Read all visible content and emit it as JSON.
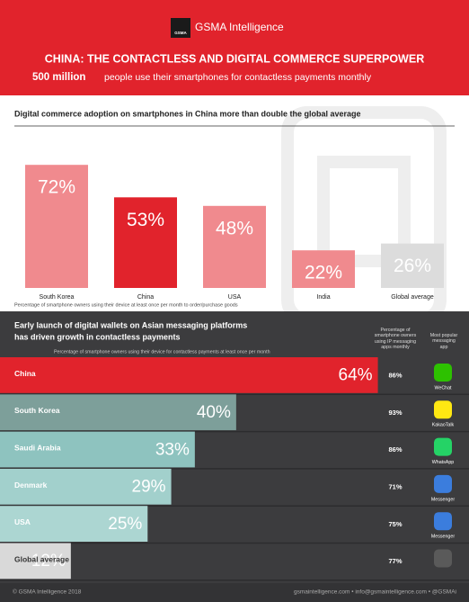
{
  "header": {
    "logo_mark": "GSMA",
    "logo": "GSMA Intelligence",
    "title": "CHINA: THE CONTACTLESS AND DIGITAL COMMERCE SUPERPOWER",
    "highlight": "500 million",
    "subtitle": "people use their smartphones for contactless payments monthly"
  },
  "chart_data": [
    {
      "type": "bar",
      "title": "Digital commerce adoption on smartphones in China more than double the global average",
      "note": "Percentage of smartphone owners using their device at least once per month  to order/purchase goods",
      "categories": [
        "South Korea",
        "China",
        "USA",
        "India",
        "Global average"
      ],
      "values": [
        72,
        53,
        48,
        22,
        26
      ],
      "value_labels": [
        "72%",
        "53%",
        "48%",
        "22%",
        "26%"
      ],
      "colors": [
        "#f08a8e",
        "#e1232c",
        "#f08a8e",
        "#f08a8e",
        "#dcdcdc"
      ],
      "ylim": [
        0,
        100
      ]
    },
    {
      "type": "hbar",
      "title": [
        "Early launch of digital wallets on Asian messaging platforms",
        "has driven growth in contactless payments"
      ],
      "note": "Percentage of smartphone owners using their device for contactless payments at least once per month",
      "categories": [
        "China",
        "South Korea",
        "Saudi Arabia",
        "Denmark",
        "USA",
        "Global average"
      ],
      "values": [
        64,
        40,
        33,
        29,
        25,
        12
      ],
      "value_labels": [
        "64%",
        "40%",
        "33%",
        "29%",
        "25%",
        "12%"
      ],
      "colors": [
        "#e1232c",
        "#7d9f9a",
        "#8ec3bf",
        "#a2d0cc",
        "#acd6d2",
        "#d9d9d9"
      ],
      "xlim": [
        0,
        70
      ],
      "usage_header": "Percentage of smartphone owners using IP messaging apps monthly",
      "usage": [
        "86%",
        "93%",
        "86%",
        "71%",
        "75%",
        "77%"
      ],
      "apps_header": "Most popular messaging app",
      "apps": [
        "WeChat",
        "KakaoTalk",
        "WhatsApp",
        "Messenger",
        "Messenger",
        null
      ]
    }
  ],
  "footer": {
    "left": "© GSMA Intelligence 2018",
    "right": "gsmaintelligence.com • info@gsmaintelligence.com • @GSMAi"
  }
}
